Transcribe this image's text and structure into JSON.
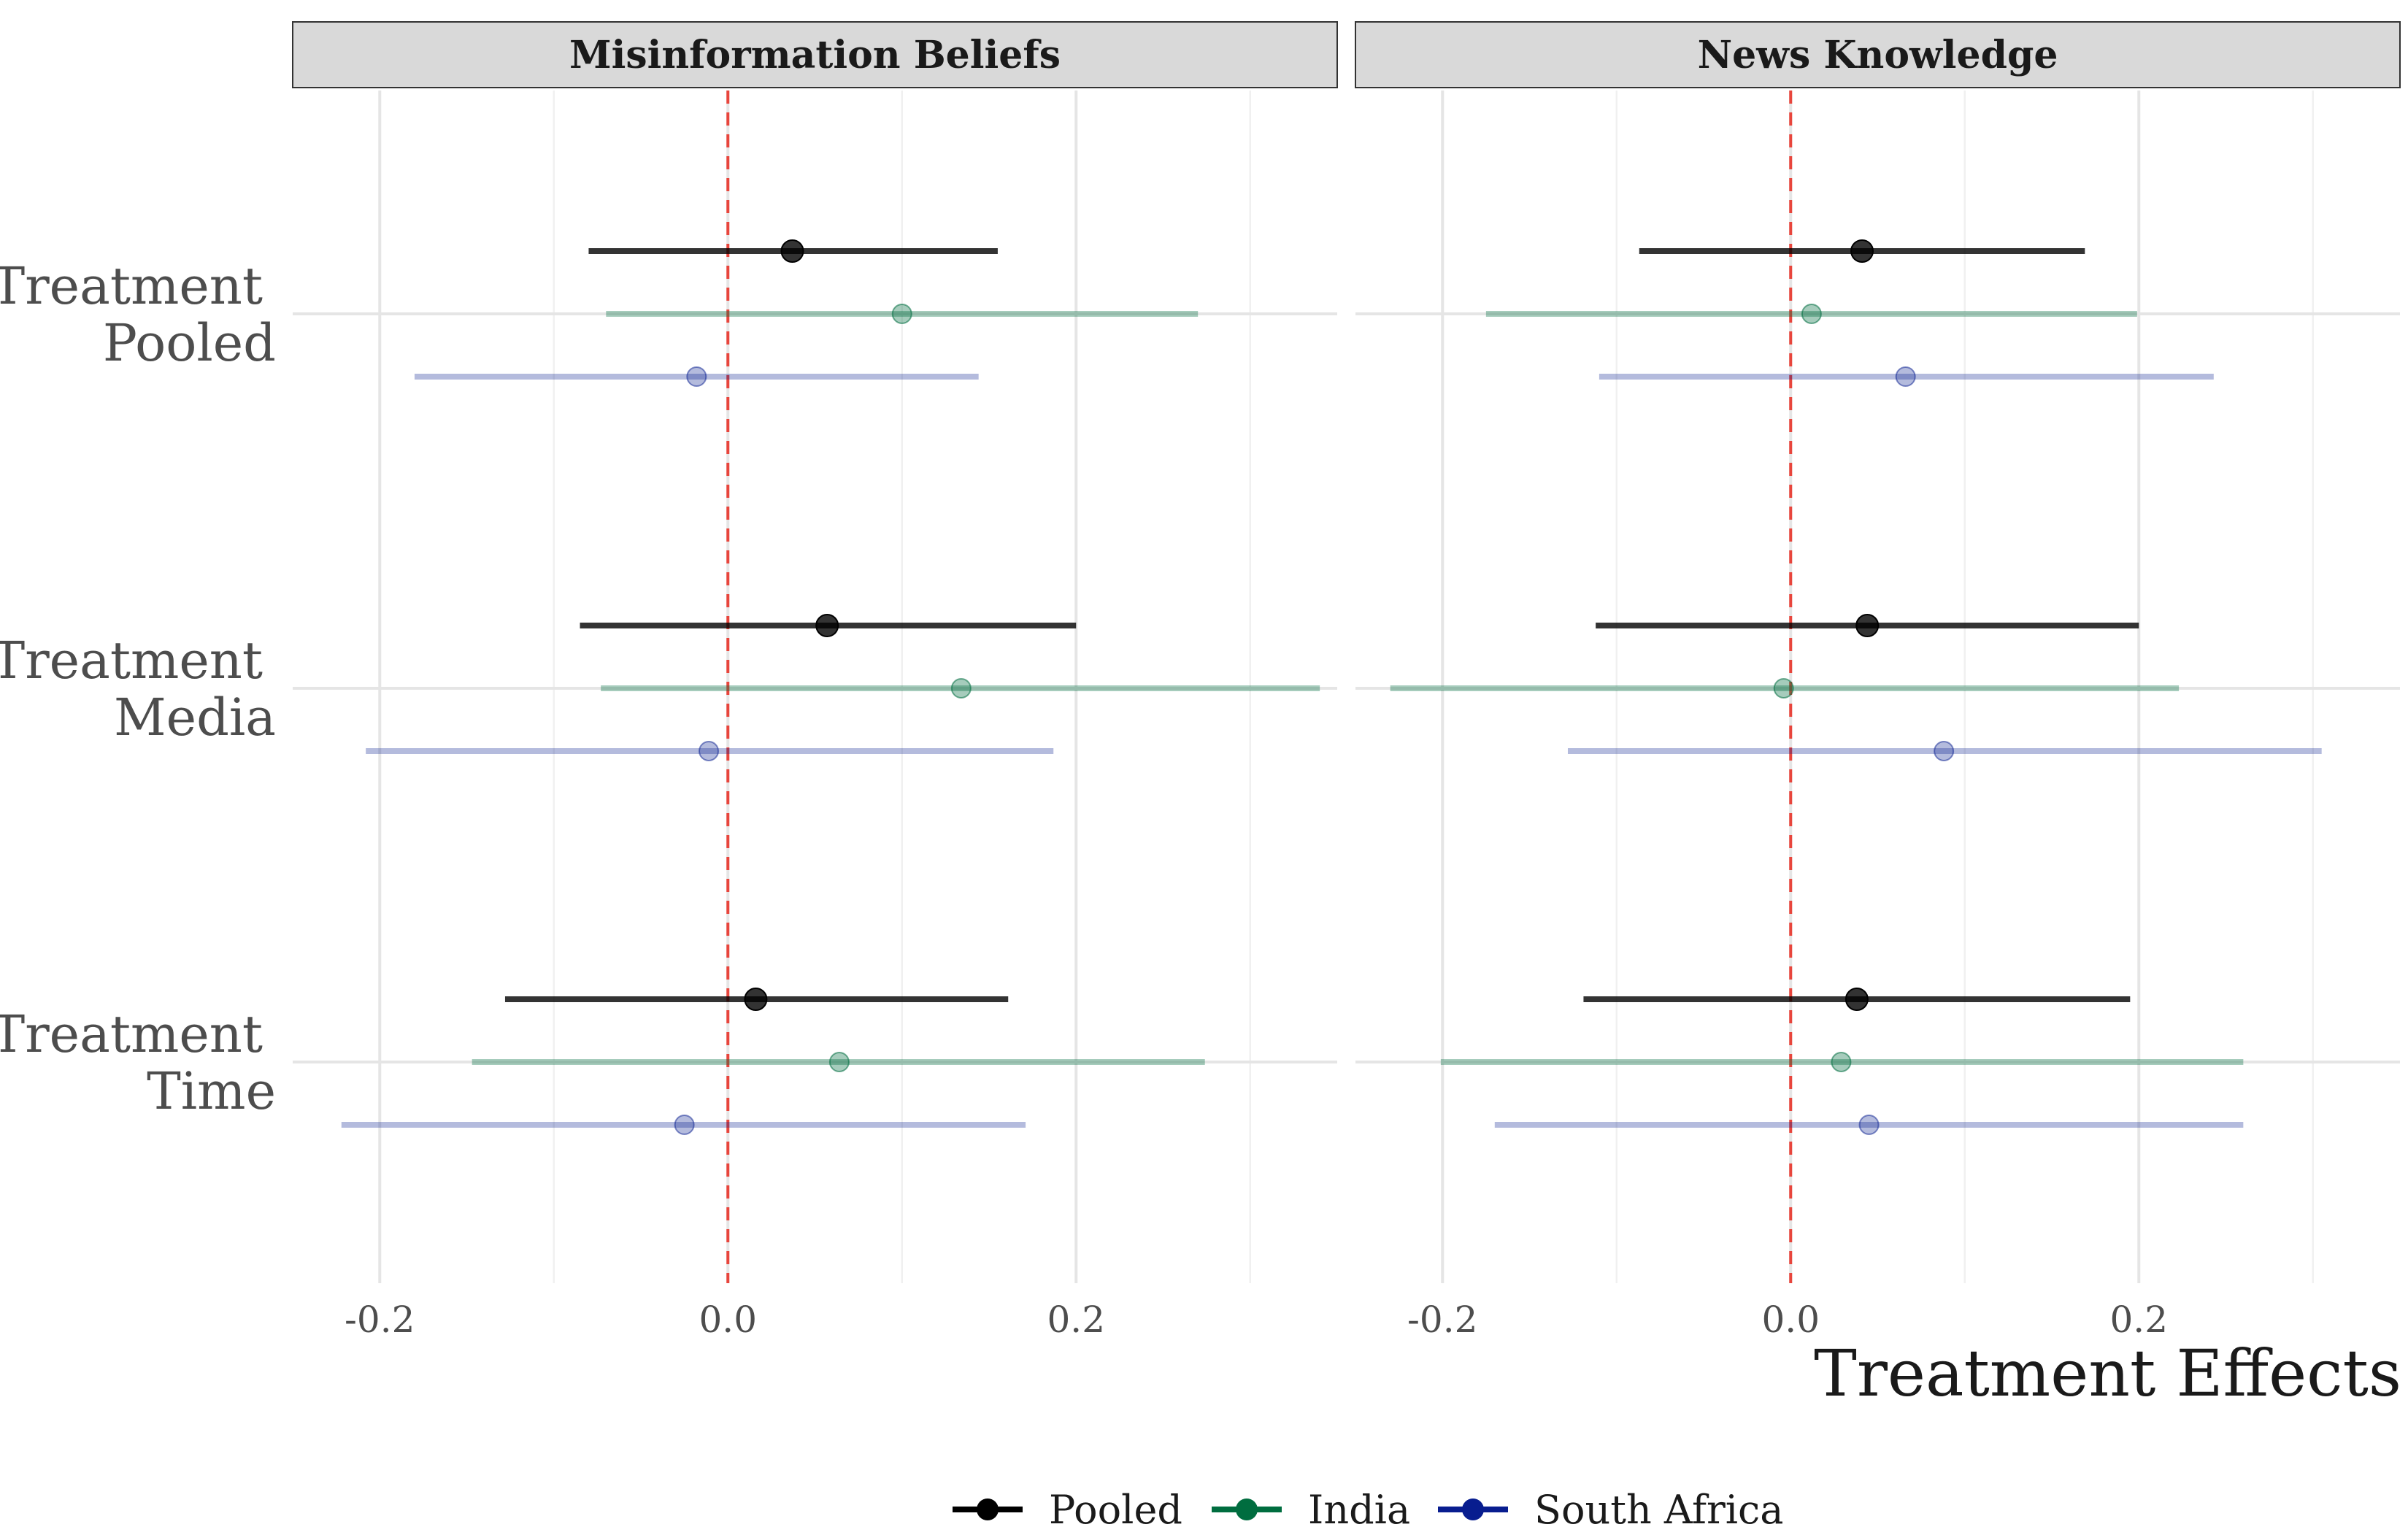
{
  "chart_data": {
    "type": "dot-whisker",
    "xlabel": "Treatment Effects",
    "xlim": [
      -0.25,
      0.35
    ],
    "xticks": [
      -0.2,
      0.0,
      0.2
    ],
    "xtick_labels": [
      "-0.2",
      "0.0",
      "0.2"
    ],
    "minor_grid": [
      -0.1,
      0.1,
      0.3
    ],
    "reference_line": {
      "x": 0,
      "style": "dashed",
      "color": "#e8453c"
    },
    "categories": [
      {
        "key": "pooled",
        "line1": "Treatment",
        "line2": "Pooled"
      },
      {
        "key": "media",
        "line1": "Treatment",
        "line2": "Media"
      },
      {
        "key": "time",
        "line1": "Treatment",
        "line2": "Time"
      }
    ],
    "legend": [
      {
        "name": "Pooled",
        "color": "#000000"
      },
      {
        "name": "India",
        "color": "#006d3f"
      },
      {
        "name": "South Africa",
        "color": "#081d8f"
      }
    ],
    "legend_position": "bottom",
    "panels": [
      {
        "title": "Misinformation Beliefs",
        "estimates": {
          "pooled": [
            {
              "series": "Pooled",
              "est": 0.037,
              "lo": -0.08,
              "hi": 0.155
            },
            {
              "series": "India",
              "est": 0.1,
              "lo": -0.07,
              "hi": 0.27
            },
            {
              "series": "South Africa",
              "est": -0.018,
              "lo": -0.18,
              "hi": 0.144
            }
          ],
          "media": [
            {
              "series": "Pooled",
              "est": 0.057,
              "lo": -0.085,
              "hi": 0.2
            },
            {
              "series": "India",
              "est": 0.134,
              "lo": -0.073,
              "hi": 0.34
            },
            {
              "series": "South Africa",
              "est": -0.011,
              "lo": -0.208,
              "hi": 0.187
            }
          ],
          "time": [
            {
              "series": "Pooled",
              "est": 0.016,
              "lo": -0.128,
              "hi": 0.161
            },
            {
              "series": "India",
              "est": 0.064,
              "lo": -0.147,
              "hi": 0.274
            },
            {
              "series": "South Africa",
              "est": -0.025,
              "lo": -0.222,
              "hi": 0.171
            }
          ]
        }
      },
      {
        "title": "News Knowledge",
        "estimates": {
          "pooled": [
            {
              "series": "Pooled",
              "est": 0.041,
              "lo": -0.087,
              "hi": 0.169
            },
            {
              "series": "India",
              "est": 0.012,
              "lo": -0.175,
              "hi": 0.199
            },
            {
              "series": "South Africa",
              "est": 0.066,
              "lo": -0.11,
              "hi": 0.243
            }
          ],
          "media": [
            {
              "series": "Pooled",
              "est": 0.044,
              "lo": -0.112,
              "hi": 0.2
            },
            {
              "series": "India",
              "est": -0.004,
              "lo": -0.23,
              "hi": 0.223
            },
            {
              "series": "South Africa",
              "est": 0.088,
              "lo": -0.128,
              "hi": 0.305
            }
          ],
          "time": [
            {
              "series": "Pooled",
              "est": 0.038,
              "lo": -0.119,
              "hi": 0.195
            },
            {
              "series": "India",
              "est": 0.029,
              "lo": -0.201,
              "hi": 0.26
            },
            {
              "series": "South Africa",
              "est": 0.045,
              "lo": -0.17,
              "hi": 0.26
            }
          ]
        }
      }
    ]
  }
}
